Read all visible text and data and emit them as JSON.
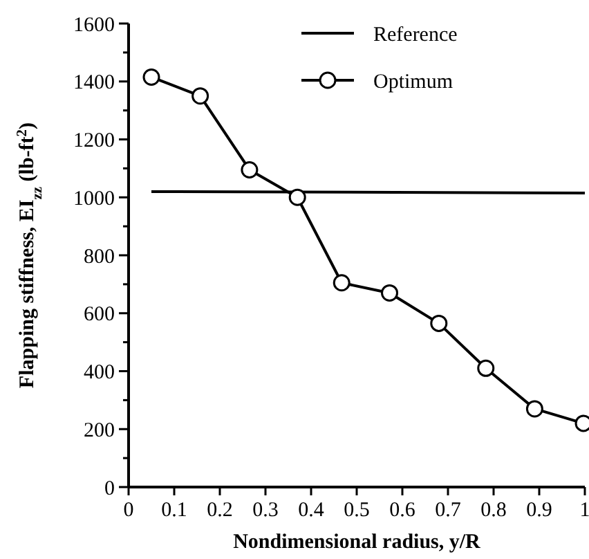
{
  "chart_data": {
    "type": "line",
    "xlabel": "Nondimensional radius, y/R",
    "ylabel": "Flapping stiffness, EI$_{zz}$ (lb-ft$^{2}$)",
    "xlim": [
      0,
      1
    ],
    "ylim": [
      0,
      1600
    ],
    "xticks": [
      0,
      0.1,
      0.2,
      0.3,
      0.4,
      0.5,
      0.6,
      0.7,
      0.8,
      0.9,
      1
    ],
    "yticks": [
      0,
      {
        "value": 100,
        "label": null
      },
      200,
      {
        "value": 300,
        "label": null
      },
      400,
      {
        "value": 500,
        "label": null
      },
      600,
      {
        "value": 700,
        "label": null
      },
      800,
      {
        "value": 900,
        "label": null
      },
      1000,
      {
        "value": 1100,
        "label": null
      },
      1200,
      {
        "value": 1300,
        "label": null
      },
      1400,
      {
        "value": 1500,
        "label": null
      },
      1600
    ],
    "grid": false,
    "legend": "top right",
    "line_style": "solid",
    "series": [
      {
        "name": "Reference",
        "color": "#000000",
        "marker": "none",
        "x": [
          0.05,
          1
        ],
        "values": [
          1020,
          1015
        ]
      },
      {
        "name": "Optimum",
        "color": "#000000",
        "marker": "circle",
        "x": [
          0.05,
          0.157,
          0.265,
          0.37,
          0.467,
          0.572,
          0.68,
          0.783,
          0.89,
          0.997
        ],
        "values": [
          1415,
          1350,
          1095,
          1000,
          705,
          670,
          565,
          410,
          270,
          220
        ]
      }
    ]
  }
}
